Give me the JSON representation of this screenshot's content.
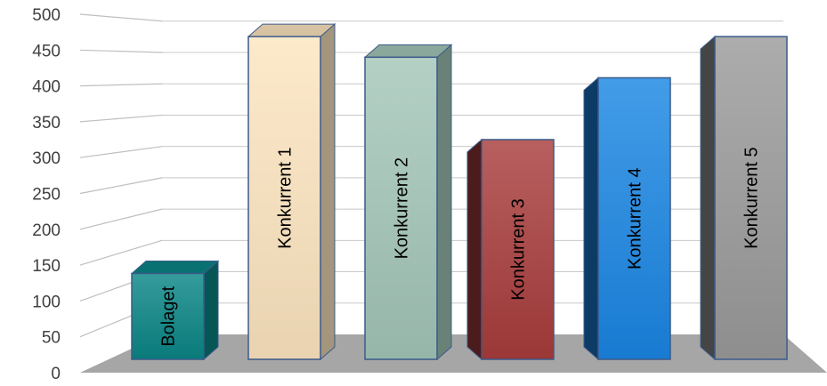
{
  "chart_data": {
    "type": "bar",
    "style": "3d-column",
    "categories": [
      "Bolaget",
      "Konkurrent 1",
      "Konkurrent 2",
      "Konkurrent 3",
      "Konkurrent 4",
      "Konkurrent 5"
    ],
    "values": [
      125,
      470,
      440,
      320,
      410,
      470
    ],
    "title": "",
    "xlabel": "",
    "ylabel": "",
    "ylim": [
      0,
      500
    ],
    "yticks": [
      "0",
      "50",
      "100",
      "150",
      "200",
      "250",
      "300",
      "350",
      "400",
      "450",
      "500"
    ],
    "grid": true,
    "legend": "none",
    "labels_inside_bars": true,
    "colors": {
      "bars": [
        "#0a8585",
        "#fde5c0",
        "#a3c6b8",
        "#a83c3c",
        "#1a86e3",
        "#9a9a9a"
      ],
      "floor": "#a6a6a6",
      "grid": "#c8c8c8",
      "wall_grid": "#bfbfbf"
    }
  }
}
